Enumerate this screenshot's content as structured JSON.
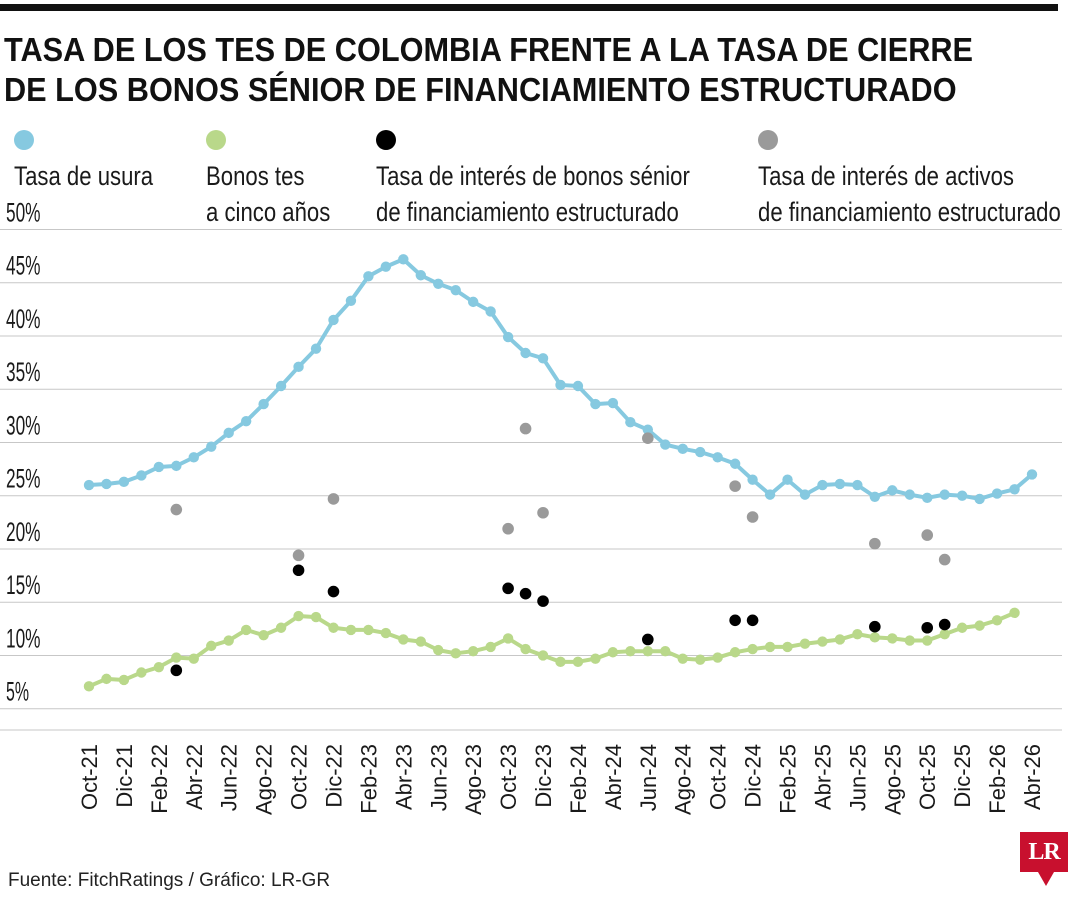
{
  "title_line1": "TASA DE LOS TES DE COLOMBIA FRENTE A LA TASA DE CIERRE",
  "title_line2": "DE LOS BONOS SÉNIOR DE FINANCIAMIENTO ESTRUCTURADO",
  "legend": [
    {
      "line1": "Tasa de usura",
      "line2": "",
      "color": "#86c9e0"
    },
    {
      "line1": "Bonos tes",
      "line2": "a cinco años",
      "color": "#b9d88a"
    },
    {
      "line1": "Tasa de interés de bonos sénior",
      "line2": "de financiamiento estructurado",
      "color": "#000000"
    },
    {
      "line1": "Tasa de interés de activos",
      "line2": "de financiamiento estructurado",
      "color": "#9a9a9a"
    }
  ],
  "source": "Fuente: FitchRatings / Gráfico: LR-GR",
  "logo": "LR",
  "chart_data": {
    "type": "line",
    "yticks": [
      "5%",
      "10%",
      "15%",
      "20%",
      "25%",
      "30%",
      "35%",
      "40%",
      "45%",
      "50%"
    ],
    "ylim": [
      3,
      51
    ],
    "month_range": [
      "Oct-21",
      "Abr-26"
    ],
    "xtick_labels": [
      "Oct-21",
      "Dic-21",
      "Feb-22",
      "Abr-22",
      "Jun-22",
      "Ago-22",
      "Oct-22",
      "Dic-22",
      "Feb-23",
      "Abr-23",
      "Jun-23",
      "Ago-23",
      "Oct-23",
      "Dic-23",
      "Feb-24",
      "Abr-24",
      "Jun-24",
      "Ago-24",
      "Oct-24",
      "Dic-24",
      "Feb-25",
      "Abr-25",
      "Jun-25",
      "Ago-25",
      "Oct-25",
      "Dic-25",
      "Feb-26",
      "Abr-26"
    ],
    "grid": true,
    "series": [
      {
        "name": "Tasa de usura",
        "kind": "line",
        "color": "#86c9e0",
        "values": [
          26.0,
          26.1,
          26.3,
          26.9,
          27.7,
          27.8,
          28.6,
          29.6,
          30.9,
          32.0,
          33.6,
          35.3,
          37.1,
          38.8,
          41.5,
          43.3,
          45.6,
          46.5,
          47.2,
          45.7,
          44.9,
          44.3,
          43.2,
          42.3,
          39.9,
          38.4,
          37.9,
          35.4,
          35.3,
          33.6,
          33.7,
          31.9,
          31.2,
          29.8,
          29.4,
          29.1,
          28.6,
          28.0,
          26.5,
          25.1,
          26.5,
          25.1,
          26.0,
          26.1,
          26.0,
          24.9,
          25.5,
          25.1,
          24.8,
          25.1,
          25.0,
          24.7,
          25.2,
          25.6,
          27.0
        ]
      },
      {
        "name": "Bonos tes a cinco años",
        "kind": "line",
        "color": "#b9d88a",
        "values": [
          7.1,
          7.8,
          7.7,
          8.4,
          8.9,
          9.8,
          9.7,
          10.9,
          11.4,
          12.4,
          11.9,
          12.6,
          13.7,
          13.6,
          12.6,
          12.4,
          12.4,
          12.1,
          11.5,
          11.3,
          10.5,
          10.2,
          10.4,
          10.8,
          11.6,
          10.6,
          10.0,
          9.4,
          9.4,
          9.7,
          10.3,
          10.4,
          10.4,
          10.4,
          9.7,
          9.6,
          9.8,
          10.3,
          10.6,
          10.8,
          10.8,
          11.1,
          11.3,
          11.5,
          12.0,
          11.7,
          11.6,
          11.4,
          11.4,
          12.0,
          12.6,
          12.8,
          13.3,
          14.0
        ]
      },
      {
        "name": "Tasa de interés de bonos sénior de financiamiento estructurado",
        "kind": "points",
        "color": "#000000",
        "points": [
          [
            "Mar-22",
            8.6
          ],
          [
            "Oct-22",
            18.0
          ],
          [
            "Dic-22",
            16.0
          ],
          [
            "Oct-23",
            16.3
          ],
          [
            "Nov-23",
            15.8
          ],
          [
            "Dic-23",
            15.1
          ],
          [
            "Jun-24",
            11.5
          ],
          [
            "Nov-24",
            13.3
          ],
          [
            "Dic-24",
            13.3
          ],
          [
            "Jul-25",
            12.7
          ],
          [
            "Oct-25",
            12.6
          ],
          [
            "Nov-25",
            12.9
          ]
        ]
      },
      {
        "name": "Tasa de interés de activos de financiamiento estructurado",
        "kind": "points",
        "color": "#9a9a9a",
        "points": [
          [
            "Mar-22",
            23.7
          ],
          [
            "Oct-22",
            19.4
          ],
          [
            "Dic-22",
            24.7
          ],
          [
            "Oct-23",
            21.9
          ],
          [
            "Nov-23",
            31.3
          ],
          [
            "Dic-23",
            23.4
          ],
          [
            "Jun-24",
            30.4
          ],
          [
            "Nov-24",
            25.9
          ],
          [
            "Dic-24",
            23.0
          ],
          [
            "Jul-25",
            20.5
          ],
          [
            "Oct-25",
            21.3
          ],
          [
            "Nov-25",
            19.0
          ]
        ]
      }
    ]
  }
}
